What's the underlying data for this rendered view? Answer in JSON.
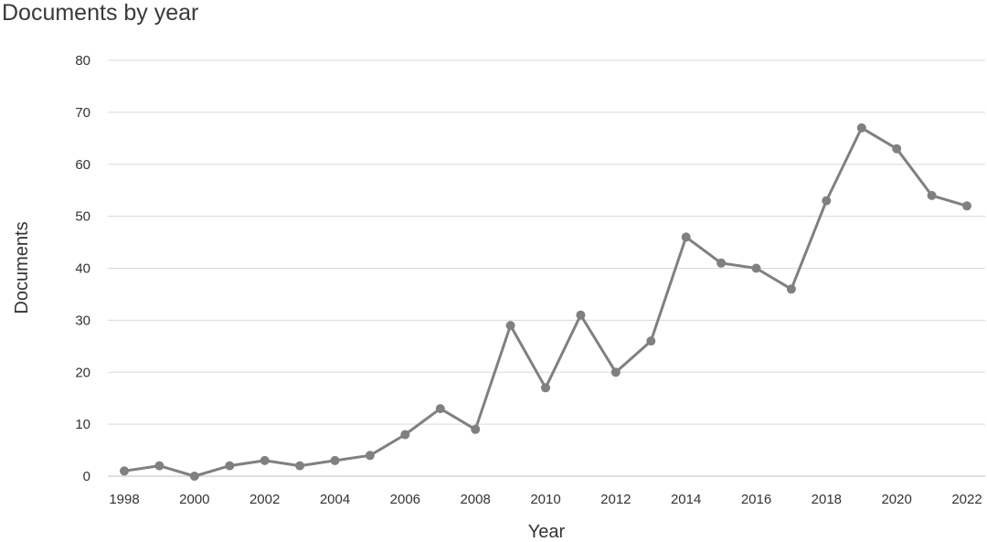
{
  "chart_data": {
    "type": "line",
    "title": "Documents by year",
    "xlabel": "Year",
    "ylabel": "Documents",
    "x": [
      1998,
      1999,
      2000,
      2001,
      2002,
      2003,
      2004,
      2005,
      2006,
      2007,
      2008,
      2009,
      2010,
      2011,
      2012,
      2013,
      2014,
      2015,
      2016,
      2017,
      2018,
      2019,
      2020,
      2021,
      2022
    ],
    "series": [
      {
        "values": [
          1,
          2,
          0,
          2,
          3,
          2,
          3,
          4,
          8,
          13,
          9,
          29,
          17,
          31,
          20,
          26,
          46,
          41,
          40,
          36,
          53,
          67,
          63,
          54,
          52
        ],
        "color": "#808080"
      }
    ],
    "x_tick_labels": [
      "1998",
      "2000",
      "2002",
      "2004",
      "2006",
      "2008",
      "2010",
      "2012",
      "2014",
      "2016",
      "2018",
      "2020",
      "2022"
    ],
    "y_tick_labels": [
      "0",
      "10",
      "20",
      "30",
      "40",
      "50",
      "60",
      "70",
      "80"
    ],
    "xlim": [
      1998,
      2022
    ],
    "ylim": [
      0,
      80
    ],
    "grid": "horizontal",
    "gridColor": "#d9d9d9",
    "legend": "none"
  }
}
